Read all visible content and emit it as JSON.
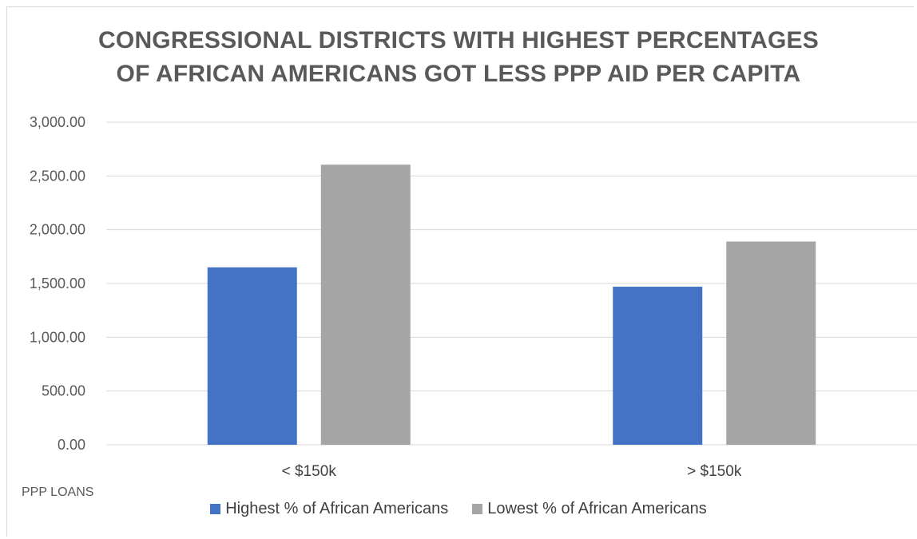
{
  "chart_data": {
    "type": "bar",
    "title_lines": [
      "CONGRESSIONAL DISTRICTS WITH HIGHEST PERCENTAGES",
      "OF AFRICAN AMERICANS GOT LESS PPP AID PER CAPITA"
    ],
    "categories": [
      "< $150k",
      "> $150k"
    ],
    "series": [
      {
        "name": "Highest % of African Americans",
        "color": "#4472c4",
        "values": [
          1650,
          1470
        ]
      },
      {
        "name": "Lowest % of African Americans",
        "color": "#a5a5a5",
        "values": [
          2605,
          1890
        ]
      }
    ],
    "xlabel": "PPP LOANS",
    "ylim": [
      0,
      3000
    ],
    "yticks": [
      "0.00",
      "500.00",
      "1,000.00",
      "1,500.00",
      "2,000.00",
      "2,500.00",
      "3,000.00"
    ],
    "grid": true,
    "legend_position": "bottom"
  }
}
